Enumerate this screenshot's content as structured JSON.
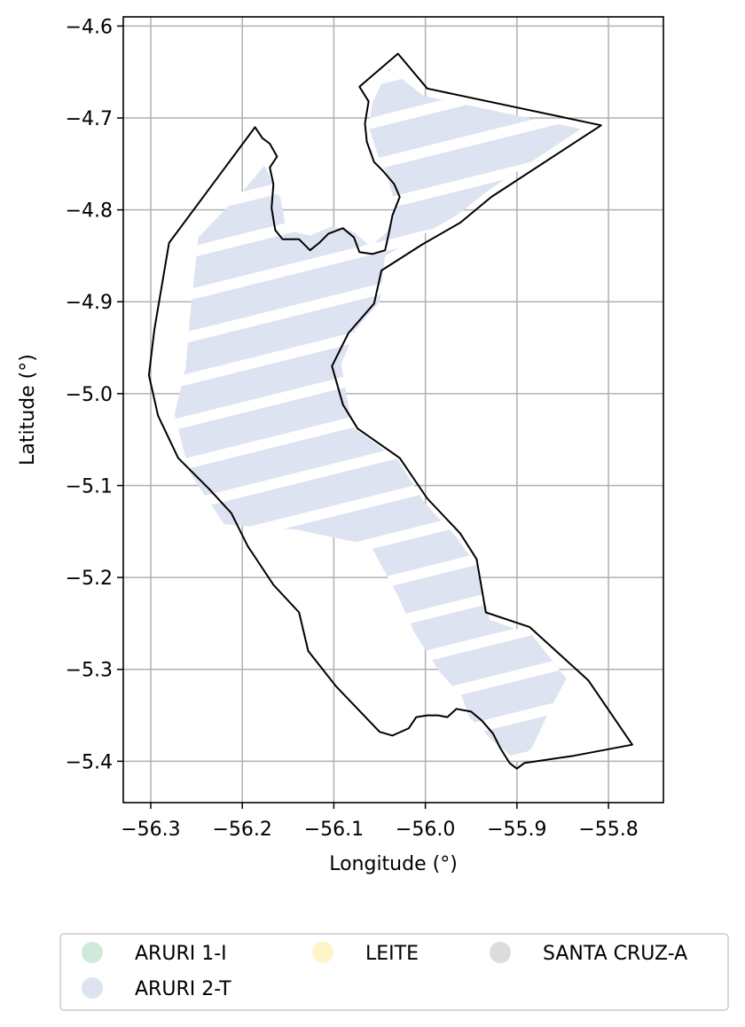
{
  "chart_data": {
    "type": "map",
    "xlabel": "Longitude (°)",
    "ylabel": "Latitude (°)",
    "xlim": [
      -56.33,
      -55.74
    ],
    "ylim": [
      -5.445,
      -4.59
    ],
    "xticks": [
      -56.3,
      -56.2,
      -56.1,
      -56.0,
      -55.9,
      -55.8
    ],
    "xtick_labels": [
      "−56.3",
      "−56.2",
      "−56.1",
      "−56.0",
      "−55.9",
      "−55.8"
    ],
    "yticks": [
      -4.6,
      -4.7,
      -4.8,
      -4.9,
      -5.0,
      -5.1,
      -5.2,
      -5.3,
      -5.4
    ],
    "ytick_labels": [
      "−4.6",
      "−4.7",
      "−4.8",
      "−4.9",
      "−5.0",
      "−5.1",
      "−5.2",
      "−5.3",
      "−5.4"
    ],
    "grid": true,
    "boundary_color": "#000000",
    "legend_placement": "below",
    "legend": [
      {
        "label": "ARURI 1-I",
        "color": "#cfeadb"
      },
      {
        "label": "ARURI 2-T",
        "color": "#dee3f1"
      },
      {
        "label": "LEITE",
        "color": "#fff3c8"
      },
      {
        "label": "SANTA CRUZ-A",
        "color": "#dcdcdc"
      }
    ],
    "boundary": [
      [
        -56.03,
        -4.63
      ],
      [
        -55.998,
        -4.668
      ],
      [
        -55.808,
        -4.708
      ],
      [
        -55.928,
        -4.786
      ],
      [
        -55.962,
        -4.814
      ],
      [
        -56.004,
        -4.838
      ],
      [
        -56.048,
        -4.866
      ],
      [
        -56.056,
        -4.902
      ],
      [
        -56.084,
        -4.934
      ],
      [
        -56.102,
        -4.97
      ],
      [
        -56.09,
        -5.012
      ],
      [
        -56.074,
        -5.038
      ],
      [
        -56.028,
        -5.07
      ],
      [
        -55.998,
        -5.114
      ],
      [
        -55.962,
        -5.152
      ],
      [
        -55.944,
        -5.18
      ],
      [
        -55.934,
        -5.238
      ],
      [
        -55.886,
        -5.254
      ],
      [
        -55.822,
        -5.312
      ],
      [
        -55.774,
        -5.382
      ],
      [
        -55.838,
        -5.394
      ],
      [
        -55.892,
        -5.402
      ],
      [
        -55.9,
        -5.408
      ],
      [
        -55.908,
        -5.402
      ],
      [
        -55.918,
        -5.386
      ],
      [
        -55.926,
        -5.37
      ],
      [
        -55.938,
        -5.356
      ],
      [
        -55.95,
        -5.346
      ],
      [
        -55.966,
        -5.343
      ],
      [
        -55.976,
        -5.352
      ],
      [
        -55.986,
        -5.35
      ],
      [
        -55.998,
        -5.35
      ],
      [
        -56.01,
        -5.352
      ],
      [
        -56.018,
        -5.364
      ],
      [
        -56.036,
        -5.372
      ],
      [
        -56.05,
        -5.368
      ],
      [
        -56.098,
        -5.318
      ],
      [
        -56.128,
        -5.28
      ],
      [
        -56.138,
        -5.238
      ],
      [
        -56.166,
        -5.208
      ],
      [
        -56.182,
        -5.184
      ],
      [
        -56.194,
        -5.166
      ],
      [
        -56.212,
        -5.13
      ],
      [
        -56.236,
        -5.104
      ],
      [
        -56.27,
        -5.07
      ],
      [
        -56.292,
        -5.024
      ],
      [
        -56.302,
        -4.98
      ],
      [
        -56.296,
        -4.93
      ],
      [
        -56.28,
        -4.836
      ],
      [
        -56.186,
        -4.71
      ],
      [
        -56.178,
        -4.722
      ],
      [
        -56.17,
        -4.728
      ],
      [
        -56.162,
        -4.742
      ],
      [
        -56.17,
        -4.754
      ],
      [
        -56.166,
        -4.772
      ],
      [
        -56.168,
        -4.798
      ],
      [
        -56.164,
        -4.822
      ],
      [
        -56.156,
        -4.832
      ],
      [
        -56.138,
        -4.832
      ],
      [
        -56.126,
        -4.844
      ],
      [
        -56.116,
        -4.836
      ],
      [
        -56.106,
        -4.826
      ],
      [
        -56.09,
        -4.82
      ],
      [
        -56.078,
        -4.83
      ],
      [
        -56.072,
        -4.846
      ],
      [
        -56.058,
        -4.848
      ],
      [
        -56.044,
        -4.844
      ],
      [
        -56.04,
        -4.826
      ],
      [
        -56.036,
        -4.806
      ],
      [
        -56.028,
        -4.786
      ],
      [
        -56.034,
        -4.772
      ],
      [
        -56.046,
        -4.758
      ],
      [
        -56.056,
        -4.748
      ],
      [
        -56.064,
        -4.726
      ],
      [
        -56.066,
        -4.706
      ],
      [
        -56.062,
        -4.682
      ],
      [
        -56.072,
        -4.666
      ]
    ],
    "region_series": "ARURI 2-T",
    "region_area": [
      [
        -56.04,
        -4.646
      ],
      [
        -56.002,
        -4.676
      ],
      [
        -55.83,
        -4.712
      ],
      [
        -55.93,
        -4.778
      ],
      [
        -55.966,
        -4.806
      ],
      [
        -56.008,
        -4.83
      ],
      [
        -56.044,
        -4.85
      ],
      [
        -56.05,
        -4.9
      ],
      [
        -56.076,
        -4.93
      ],
      [
        -56.092,
        -4.968
      ],
      [
        -56.08,
        -5.036
      ],
      [
        -56.03,
        -5.072
      ],
      [
        -56.0,
        -5.12
      ],
      [
        -55.966,
        -5.156
      ],
      [
        -55.942,
        -5.19
      ],
      [
        -55.93,
        -5.246
      ],
      [
        -55.884,
        -5.262
      ],
      [
        -55.846,
        -5.31
      ],
      [
        -55.864,
        -5.344
      ],
      [
        -55.884,
        -5.386
      ],
      [
        -55.9,
        -5.4
      ],
      [
        -55.924,
        -5.38
      ],
      [
        -55.952,
        -5.352
      ],
      [
        -55.96,
        -5.33
      ],
      [
        -55.985,
        -5.302
      ],
      [
        -56.012,
        -5.26
      ],
      [
        -56.03,
        -5.22
      ],
      [
        -56.06,
        -5.165
      ],
      [
        -56.14,
        -5.148
      ],
      [
        -56.22,
        -5.142
      ],
      [
        -56.258,
        -5.085
      ],
      [
        -56.274,
        -5.022
      ],
      [
        -56.262,
        -4.972
      ],
      [
        -56.256,
        -4.905
      ],
      [
        -56.248,
        -4.83
      ],
      [
        -56.198,
        -4.778
      ],
      [
        -56.176,
        -4.752
      ],
      [
        -56.158,
        -4.788
      ],
      [
        -56.152,
        -4.822
      ],
      [
        -56.126,
        -4.828
      ],
      [
        -56.102,
        -4.818
      ],
      [
        -56.078,
        -4.824
      ],
      [
        -56.06,
        -4.84
      ],
      [
        -56.042,
        -4.824
      ],
      [
        -56.032,
        -4.798
      ],
      [
        -56.042,
        -4.762
      ],
      [
        -56.052,
        -4.74
      ],
      [
        -56.062,
        -4.71
      ],
      [
        -56.058,
        -4.684
      ]
    ]
  }
}
